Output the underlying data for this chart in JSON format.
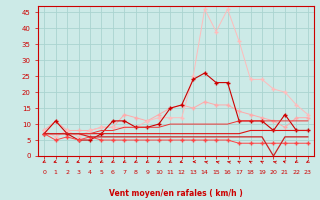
{
  "x": [
    0,
    1,
    2,
    3,
    4,
    5,
    6,
    7,
    8,
    9,
    10,
    11,
    12,
    13,
    14,
    15,
    16,
    17,
    18,
    19,
    20,
    21,
    22,
    23
  ],
  "series": [
    {
      "label": "rafales_light1",
      "color": "#ffaaaa",
      "lw": 0.7,
      "marker": "+",
      "markersize": 3,
      "values": [
        8,
        11,
        8,
        8,
        8,
        9,
        9,
        13,
        12,
        11,
        13,
        15,
        16,
        15,
        17,
        16,
        16,
        14,
        13,
        12,
        11,
        9,
        12,
        12
      ]
    },
    {
      "label": "rafales_light2",
      "color": "#ffbbbb",
      "lw": 0.7,
      "marker": "+",
      "markersize": 3,
      "values": [
        8,
        6,
        8,
        6,
        8,
        9,
        9,
        9,
        9,
        11,
        12,
        12,
        12,
        25,
        46,
        39,
        46,
        36,
        24,
        24,
        21,
        20,
        16,
        13
      ]
    },
    {
      "label": "moyen_dark1",
      "color": "#cc0000",
      "lw": 0.8,
      "marker": "+",
      "markersize": 3,
      "values": [
        7,
        11,
        7,
        5,
        5,
        7,
        11,
        11,
        9,
        9,
        10,
        15,
        16,
        24,
        26,
        23,
        23,
        11,
        11,
        11,
        8,
        13,
        8,
        8
      ]
    },
    {
      "label": "moyen_flat1",
      "color": "#dd1111",
      "lw": 0.8,
      "marker": null,
      "markersize": 0,
      "values": [
        7,
        7,
        7,
        7,
        7,
        7,
        7,
        7,
        7,
        7,
        7,
        7,
        7,
        7,
        7,
        7,
        7,
        7,
        8,
        8,
        8,
        8,
        8,
        8
      ]
    },
    {
      "label": "moyen_flat2",
      "color": "#ee3333",
      "lw": 0.7,
      "marker": null,
      "markersize": 0,
      "values": [
        7,
        7,
        7,
        7,
        7,
        8,
        8,
        9,
        9,
        9,
        9,
        10,
        10,
        10,
        10,
        10,
        10,
        11,
        11,
        11,
        11,
        11,
        11,
        11
      ]
    },
    {
      "label": "moyen_medium",
      "color": "#ff4444",
      "lw": 0.7,
      "marker": "+",
      "markersize": 3,
      "values": [
        7,
        5,
        6,
        5,
        6,
        5,
        5,
        5,
        5,
        5,
        5,
        5,
        5,
        5,
        5,
        5,
        5,
        4,
        4,
        4,
        4,
        4,
        4,
        4
      ]
    },
    {
      "label": "moyen_step",
      "color": "#cc2222",
      "lw": 0.9,
      "marker": null,
      "markersize": 0,
      "values": [
        7,
        7,
        7,
        7,
        6,
        6,
        6,
        6,
        6,
        6,
        6,
        6,
        6,
        6,
        6,
        6,
        6,
        6,
        6,
        6,
        0,
        6,
        6,
        6
      ]
    }
  ],
  "wind_arrows": {
    "x": [
      0,
      1,
      2,
      3,
      4,
      5,
      6,
      7,
      8,
      9,
      10,
      11,
      12,
      13,
      14,
      15,
      16,
      17,
      18,
      19,
      20,
      21,
      22,
      23
    ],
    "angles": [
      210,
      225,
      210,
      225,
      210,
      210,
      210,
      210,
      210,
      210,
      210,
      210,
      225,
      270,
      300,
      300,
      300,
      330,
      330,
      330,
      300,
      315,
      210,
      210
    ]
  },
  "xlabel": "Vent moyen/en rafales ( km/h )",
  "xlim": [
    -0.5,
    23.5
  ],
  "ylim": [
    0,
    47
  ],
  "yticks": [
    0,
    5,
    10,
    15,
    20,
    25,
    30,
    35,
    40,
    45
  ],
  "xticks": [
    0,
    1,
    2,
    3,
    4,
    5,
    6,
    7,
    8,
    9,
    10,
    11,
    12,
    13,
    14,
    15,
    16,
    17,
    18,
    19,
    20,
    21,
    22,
    23
  ],
  "bg_color": "#cceae7",
  "grid_color": "#aad4d0",
  "axis_color": "#cc0000"
}
